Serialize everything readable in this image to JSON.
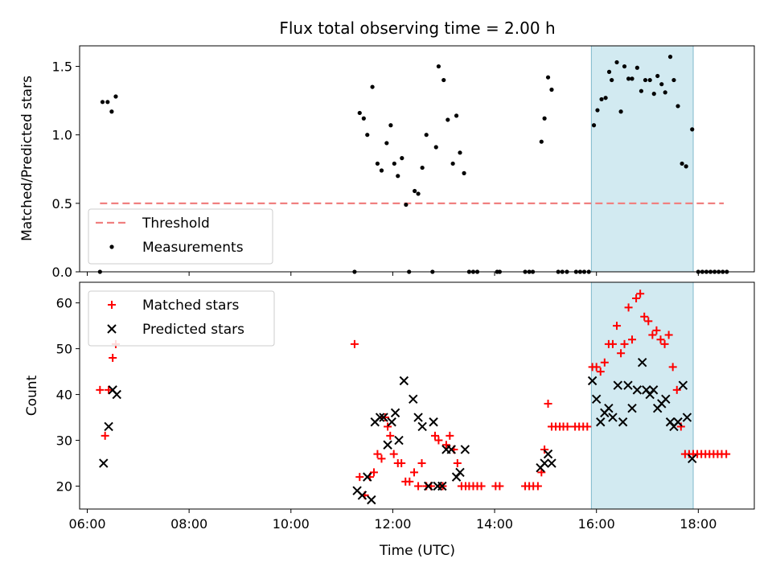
{
  "chart_data": {
    "type": "scatter",
    "title": "Flux total observing time = 2.00 h",
    "xlabel": "Time (UTC)",
    "x_unit": "hours UTC",
    "xlim": [
      5.85,
      19.1
    ],
    "xticks": [
      6,
      8,
      10,
      12,
      14,
      16,
      18
    ],
    "xtick_labels": [
      "06:00",
      "08:00",
      "10:00",
      "12:00",
      "14:00",
      "16:00",
      "18:00"
    ],
    "highlight_span": {
      "x0": 15.9,
      "x1": 17.9,
      "color": "#add8e6"
    },
    "panels": [
      {
        "id": "ratio",
        "ylabel": "Matched/Predicted stars",
        "ylim": [
          0,
          1.65
        ],
        "yticks": [
          0.0,
          0.5,
          1.0,
          1.5
        ],
        "ytick_labels": [
          "0.0",
          "0.5",
          "1.0",
          "1.5"
        ],
        "legend": {
          "placement": "lower-left",
          "entries": [
            "Threshold",
            "Measurements"
          ]
        },
        "series": [
          {
            "name": "Threshold",
            "style": "dashed-line",
            "color": "#f08080",
            "x": [
              6.25,
              18.5
            ],
            "y": [
              0.5,
              0.5
            ]
          },
          {
            "name": "Measurements",
            "style": "dot",
            "color": "#000000",
            "points": [
              [
                6.25,
                0.0
              ],
              [
                6.3,
                1.24
              ],
              [
                6.4,
                1.24
              ],
              [
                6.48,
                1.17
              ],
              [
                6.56,
                1.28
              ],
              [
                11.25,
                0.0
              ],
              [
                11.35,
                1.16
              ],
              [
                11.43,
                1.12
              ],
              [
                11.5,
                1.0
              ],
              [
                11.6,
                1.35
              ],
              [
                11.7,
                0.79
              ],
              [
                11.78,
                0.74
              ],
              [
                11.88,
                0.94
              ],
              [
                11.96,
                1.07
              ],
              [
                12.03,
                0.79
              ],
              [
                12.1,
                0.7
              ],
              [
                12.18,
                0.83
              ],
              [
                12.26,
                0.49
              ],
              [
                12.32,
                0.0
              ],
              [
                12.43,
                0.59
              ],
              [
                12.5,
                0.57
              ],
              [
                12.58,
                0.76
              ],
              [
                12.66,
                1.0
              ],
              [
                12.78,
                0.0
              ],
              [
                12.85,
                0.91
              ],
              [
                12.9,
                1.5
              ],
              [
                13.0,
                1.4
              ],
              [
                13.08,
                1.11
              ],
              [
                13.18,
                0.79
              ],
              [
                13.25,
                1.14
              ],
              [
                13.32,
                0.87
              ],
              [
                13.4,
                0.72
              ],
              [
                13.5,
                0.0
              ],
              [
                13.58,
                0.0
              ],
              [
                13.66,
                0.0
              ],
              [
                14.05,
                0.0
              ],
              [
                14.1,
                0.0
              ],
              [
                14.6,
                0.0
              ],
              [
                14.68,
                0.0
              ],
              [
                14.75,
                0.0
              ],
              [
                14.92,
                0.95
              ],
              [
                14.98,
                1.12
              ],
              [
                15.05,
                1.42
              ],
              [
                15.12,
                1.33
              ],
              [
                15.25,
                0.0
              ],
              [
                15.33,
                0.0
              ],
              [
                15.42,
                0.0
              ],
              [
                15.6,
                0.0
              ],
              [
                15.68,
                0.0
              ],
              [
                15.76,
                0.0
              ],
              [
                15.85,
                0.0
              ],
              [
                15.95,
                1.07
              ],
              [
                16.02,
                1.18
              ],
              [
                16.1,
                1.26
              ],
              [
                16.18,
                1.27
              ],
              [
                16.25,
                1.46
              ],
              [
                16.3,
                1.4
              ],
              [
                16.4,
                1.53
              ],
              [
                16.48,
                1.17
              ],
              [
                16.55,
                1.5
              ],
              [
                16.63,
                1.41
              ],
              [
                16.7,
                1.41
              ],
              [
                16.8,
                1.49
              ],
              [
                16.88,
                1.32
              ],
              [
                16.96,
                1.4
              ],
              [
                17.05,
                1.4
              ],
              [
                17.13,
                1.3
              ],
              [
                17.2,
                1.43
              ],
              [
                17.28,
                1.37
              ],
              [
                17.35,
                1.31
              ],
              [
                17.45,
                1.57
              ],
              [
                17.52,
                1.4
              ],
              [
                17.6,
                1.21
              ],
              [
                17.68,
                0.79
              ],
              [
                17.76,
                0.77
              ],
              [
                17.88,
                1.04
              ],
              [
                18.0,
                0.0
              ],
              [
                18.08,
                0.0
              ],
              [
                18.16,
                0.0
              ],
              [
                18.24,
                0.0
              ],
              [
                18.32,
                0.0
              ],
              [
                18.4,
                0.0
              ],
              [
                18.48,
                0.0
              ],
              [
                18.56,
                0.0
              ]
            ]
          }
        ]
      },
      {
        "id": "count",
        "ylabel": "Count",
        "ylim": [
          15,
          64.5
        ],
        "yticks": [
          20,
          30,
          40,
          50,
          60
        ],
        "ytick_labels": [
          "20",
          "30",
          "40",
          "50",
          "60"
        ],
        "legend": {
          "placement": "upper-left",
          "entries": [
            "Matched stars",
            "Predicted stars"
          ]
        },
        "series": [
          {
            "name": "Matched stars",
            "marker": "plus",
            "color": "#ff0000",
            "points": [
              [
                6.25,
                41
              ],
              [
                6.35,
                31
              ],
              [
                6.42,
                41
              ],
              [
                6.5,
                48
              ],
              [
                6.56,
                51
              ],
              [
                11.25,
                51
              ],
              [
                11.35,
                22
              ],
              [
                11.45,
                18
              ],
              [
                11.55,
                22
              ],
              [
                11.63,
                23
              ],
              [
                11.7,
                27
              ],
              [
                11.78,
                26
              ],
              [
                11.85,
                35
              ],
              [
                11.9,
                33
              ],
              [
                11.95,
                31
              ],
              [
                12.02,
                27
              ],
              [
                12.1,
                25
              ],
              [
                12.17,
                25
              ],
              [
                12.25,
                21
              ],
              [
                12.33,
                21
              ],
              [
                12.42,
                23
              ],
              [
                12.5,
                20
              ],
              [
                12.57,
                25
              ],
              [
                12.66,
                20
              ],
              [
                12.75,
                20
              ],
              [
                12.83,
                31
              ],
              [
                12.9,
                30
              ],
              [
                12.98,
                20
              ],
              [
                13.05,
                29
              ],
              [
                13.12,
                31
              ],
              [
                13.2,
                28
              ],
              [
                13.27,
                25
              ],
              [
                13.35,
                20
              ],
              [
                13.43,
                20
              ],
              [
                13.5,
                20
              ],
              [
                13.58,
                20
              ],
              [
                13.66,
                20
              ],
              [
                13.74,
                20
              ],
              [
                14.02,
                20
              ],
              [
                14.1,
                20
              ],
              [
                14.6,
                20
              ],
              [
                14.68,
                20
              ],
              [
                14.76,
                20
              ],
              [
                14.85,
                20
              ],
              [
                14.92,
                23
              ],
              [
                14.98,
                28
              ],
              [
                15.05,
                38
              ],
              [
                15.12,
                33
              ],
              [
                15.2,
                33
              ],
              [
                15.28,
                33
              ],
              [
                15.35,
                33
              ],
              [
                15.43,
                33
              ],
              [
                15.58,
                33
              ],
              [
                15.66,
                33
              ],
              [
                15.74,
                33
              ],
              [
                15.82,
                33
              ],
              [
                15.92,
                46
              ],
              [
                16.0,
                46
              ],
              [
                16.08,
                45
              ],
              [
                16.16,
                47
              ],
              [
                16.24,
                51
              ],
              [
                16.32,
                51
              ],
              [
                16.4,
                55
              ],
              [
                16.48,
                49
              ],
              [
                16.55,
                51
              ],
              [
                16.63,
                59
              ],
              [
                16.7,
                52
              ],
              [
                16.78,
                61
              ],
              [
                16.86,
                62
              ],
              [
                16.94,
                57
              ],
              [
                17.02,
                56
              ],
              [
                17.1,
                53
              ],
              [
                17.18,
                54
              ],
              [
                17.26,
                52
              ],
              [
                17.34,
                51
              ],
              [
                17.42,
                53
              ],
              [
                17.5,
                46
              ],
              [
                17.58,
                41
              ],
              [
                17.66,
                33
              ],
              [
                17.74,
                27
              ],
              [
                17.82,
                27
              ],
              [
                17.9,
                27
              ],
              [
                17.98,
                27
              ],
              [
                18.06,
                27
              ],
              [
                18.14,
                27
              ],
              [
                18.22,
                27
              ],
              [
                18.3,
                27
              ],
              [
                18.38,
                27
              ],
              [
                18.46,
                27
              ],
              [
                18.55,
                27
              ]
            ]
          },
          {
            "name": "Predicted stars",
            "marker": "x",
            "color": "#000000",
            "points": [
              [
                6.32,
                25
              ],
              [
                6.42,
                33
              ],
              [
                6.5,
                41
              ],
              [
                6.58,
                40
              ],
              [
                11.3,
                19
              ],
              [
                11.4,
                18
              ],
              [
                11.5,
                22
              ],
              [
                11.58,
                17
              ],
              [
                11.65,
                34
              ],
              [
                11.75,
                35
              ],
              [
                11.82,
                35
              ],
              [
                11.9,
                29
              ],
              [
                11.98,
                34
              ],
              [
                12.05,
                36
              ],
              [
                12.12,
                30
              ],
              [
                12.22,
                43
              ],
              [
                12.4,
                39
              ],
              [
                12.5,
                35
              ],
              [
                12.58,
                33
              ],
              [
                12.7,
                20
              ],
              [
                12.8,
                34
              ],
              [
                12.88,
                20
              ],
              [
                12.97,
                20
              ],
              [
                13.05,
                28
              ],
              [
                13.15,
                28
              ],
              [
                13.25,
                22
              ],
              [
                13.32,
                23
              ],
              [
                13.42,
                28
              ],
              [
                14.9,
                24
              ],
              [
                14.98,
                25
              ],
              [
                15.05,
                27
              ],
              [
                15.12,
                25
              ],
              [
                15.92,
                43
              ],
              [
                16.0,
                39
              ],
              [
                16.08,
                34
              ],
              [
                16.16,
                36
              ],
              [
                16.24,
                37
              ],
              [
                16.32,
                35
              ],
              [
                16.42,
                42
              ],
              [
                16.52,
                34
              ],
              [
                16.62,
                42
              ],
              [
                16.7,
                37
              ],
              [
                16.8,
                41
              ],
              [
                16.9,
                47
              ],
              [
                16.98,
                41
              ],
              [
                17.05,
                40
              ],
              [
                17.12,
                41
              ],
              [
                17.2,
                37
              ],
              [
                17.28,
                38
              ],
              [
                17.36,
                39
              ],
              [
                17.45,
                34
              ],
              [
                17.52,
                33
              ],
              [
                17.6,
                34
              ],
              [
                17.7,
                42
              ],
              [
                17.78,
                35
              ],
              [
                17.88,
                26
              ]
            ]
          }
        ]
      }
    ]
  }
}
